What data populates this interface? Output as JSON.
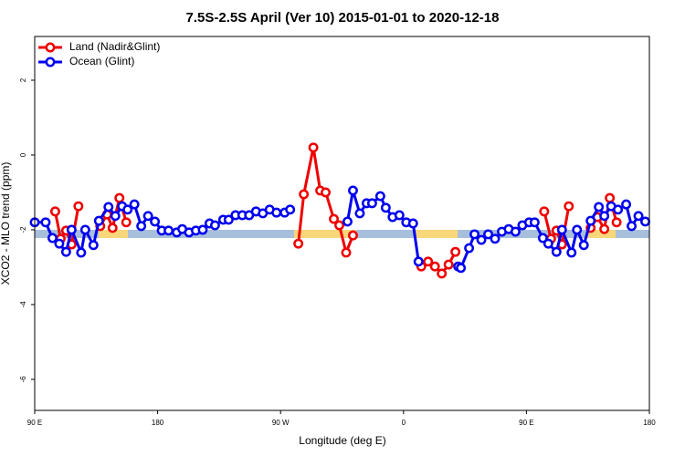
{
  "chart_data": {
    "type": "line",
    "title": "7.5S-2.5S April (Ver 10)   2015-01-01 to 2020-12-18",
    "x_label": "Longitude (deg E)",
    "y_label": "XCO2 - MLO trend (ppm)",
    "xlim": [
      90,
      540
    ],
    "xticks": [
      {
        "value": 90,
        "label": "90 E"
      },
      180,
      {
        "value": 270,
        "label": "90 W"
      },
      {
        "value": 360,
        "label": "0"
      },
      {
        "value": 450,
        "label": "90 E"
      },
      {
        "value": 540,
        "label": "180"
      }
    ],
    "ylim": [
      -6.83,
      3.17
    ],
    "yticks": [
      -6,
      -4,
      -2,
      0,
      2
    ],
    "legend": "top-left",
    "series": [
      {
        "name": "Land (Nadir&Glint)",
        "color": "#ee0000",
        "x": [
          105,
          109,
          113,
          117,
          122,
          null,
          138,
          143,
          147,
          152,
          157,
          null,
          283,
          287,
          294,
          299,
          303,
          309,
          313,
          318,
          323,
          null,
          373,
          378,
          383,
          388,
          393,
          398,
          null,
          463,
          468,
          472,
          476,
          481,
          null,
          497,
          502,
          507,
          511,
          516
        ],
        "values": [
          -1.51,
          -2.24,
          -2.02,
          -2.39,
          -1.37,
          null,
          -1.9,
          -1.59,
          -1.95,
          -1.15,
          -1.8,
          null,
          -2.37,
          -1.05,
          0.2,
          -0.95,
          -1.0,
          -1.71,
          -1.88,
          -2.61,
          -2.15,
          null,
          -2.98,
          -2.85,
          -2.98,
          -3.17,
          -2.93,
          -2.59,
          null,
          -1.51,
          -2.24,
          -2.02,
          -2.39,
          -1.37,
          null,
          -1.95,
          -1.66,
          -1.98,
          -1.15,
          -1.8
        ]
      },
      {
        "name": "Ocean (Glint)",
        "color": "#0000ee",
        "x": [
          90,
          98,
          103,
          108,
          113,
          117,
          124,
          127,
          133,
          137,
          144,
          149,
          154,
          158,
          163,
          168,
          173,
          178,
          183,
          188,
          194,
          198,
          203,
          208,
          213,
          218,
          222,
          228,
          232,
          237,
          242,
          247,
          252,
          257,
          262,
          267,
          273,
          277,
          null,
          319,
          323,
          328,
          333,
          337,
          343,
          347,
          352,
          357,
          362,
          367,
          371,
          null,
          400,
          402,
          408,
          412,
          417,
          422,
          427,
          432,
          437,
          442,
          447,
          452,
          456,
          462,
          466,
          472,
          476,
          483,
          487,
          492,
          497,
          503,
          507,
          512,
          517,
          523,
          527,
          532,
          537
        ],
        "values": [
          -1.8,
          -1.8,
          -2.22,
          -2.37,
          -2.59,
          -2.0,
          -2.61,
          -2.0,
          -2.41,
          -1.76,
          -1.39,
          -1.63,
          -1.37,
          -1.46,
          -1.32,
          -1.9,
          -1.63,
          -1.78,
          -2.02,
          -2.02,
          -2.07,
          -1.98,
          -2.07,
          -2.02,
          -2.0,
          -1.83,
          -1.88,
          -1.73,
          -1.73,
          -1.61,
          -1.61,
          -1.61,
          -1.51,
          -1.56,
          -1.46,
          -1.54,
          -1.54,
          -1.46,
          null,
          -1.78,
          -0.95,
          -1.56,
          -1.29,
          -1.29,
          -1.1,
          -1.41,
          -1.66,
          -1.61,
          -1.8,
          -1.83,
          -2.85,
          null,
          -2.98,
          -3.02,
          -2.49,
          -2.12,
          -2.27,
          -2.12,
          -2.24,
          -2.05,
          -1.98,
          -2.05,
          -1.88,
          -1.8,
          -1.8,
          -2.22,
          -2.37,
          -2.59,
          -2.0,
          -2.61,
          -2.0,
          -2.41,
          -1.76,
          -1.39,
          -1.63,
          -1.37,
          -1.46,
          -1.32,
          -1.9,
          -1.63,
          -1.78
        ]
      }
    ]
  }
}
